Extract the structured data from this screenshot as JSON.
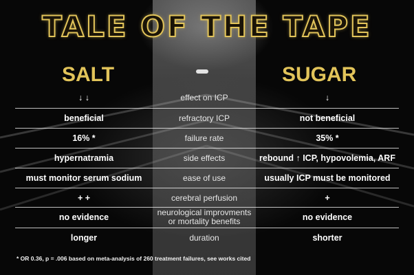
{
  "title": "TALE OF THE TAPE",
  "columns": {
    "left": "SALT",
    "right": "SUGAR"
  },
  "rows": [
    {
      "left": "↓ ↓",
      "middle": "effect on ICP",
      "right": "↓"
    },
    {
      "left": "beneficial",
      "middle": "refractory ICP",
      "right": "not beneficial"
    },
    {
      "left": "16% *",
      "middle": "failure rate",
      "right": "35% *"
    },
    {
      "left": "hypernatramia",
      "middle": "side effects",
      "right": "rebound ↑ ICP, hypovolemia, ARF"
    },
    {
      "left": "must monitor serum sodium",
      "middle": "ease of use",
      "right": "usually ICP must be monitored"
    },
    {
      "left": "+ +",
      "middle": "cerebral perfusion",
      "right": "+"
    },
    {
      "left": "no evidence",
      "middle": "neurological improvments or mortality benefits",
      "right": "no evidence"
    },
    {
      "left": "longer",
      "middle": "duration",
      "right": "shorter"
    }
  ],
  "footnote": "* OR 0.36, p = .006 based on meta-analysis of 260 treatment failures, see works cited",
  "colors": {
    "accent": "#e2c45a",
    "background": "#070707",
    "text": "#ffffff"
  }
}
